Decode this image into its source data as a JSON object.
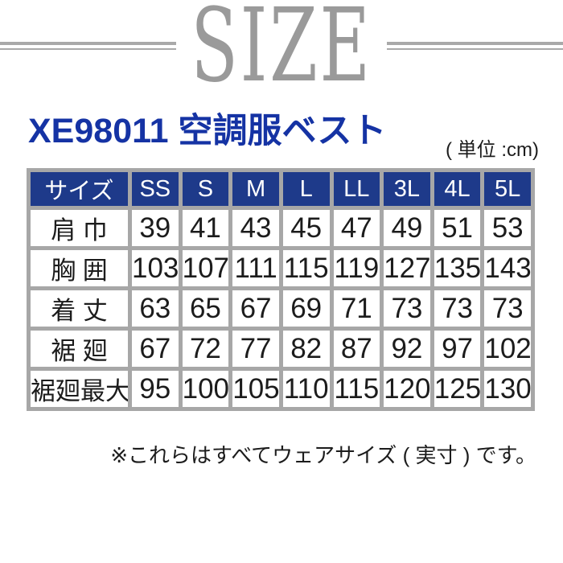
{
  "page": {
    "size_heading": "SIZE",
    "product_title": "XE98011 空調服ベスト",
    "unit_label": "( 単位 :cm)",
    "footnote": "※これらはすべてウェアサイズ ( 実寸 ) です。"
  },
  "colors": {
    "title_blue": "#1533a4",
    "header_blue": "#1e3a8a",
    "heading_gray": "#9a9a9a",
    "rule_gray": "#a9a9a9",
    "border_gray": "#a7a7a7"
  },
  "chart_data": {
    "type": "table",
    "title": "XE98011 空調服ベスト",
    "unit": "cm",
    "columns": [
      "サイズ",
      "SS",
      "S",
      "M",
      "L",
      "LL",
      "3L",
      "4L",
      "5L"
    ],
    "rows": [
      {
        "label": "肩 巾",
        "values": [
          39,
          41,
          43,
          45,
          47,
          49,
          51,
          53
        ]
      },
      {
        "label": "胸 囲",
        "values": [
          103,
          107,
          111,
          115,
          119,
          127,
          135,
          143
        ]
      },
      {
        "label": "着 丈",
        "values": [
          63,
          65,
          67,
          69,
          71,
          73,
          73,
          73
        ]
      },
      {
        "label": "裾 廻",
        "values": [
          67,
          72,
          77,
          82,
          87,
          92,
          97,
          102
        ]
      },
      {
        "label": "裾廻最大",
        "values": [
          95,
          100,
          105,
          110,
          115,
          120,
          125,
          130
        ]
      }
    ],
    "note": "※これらはすべてウェアサイズ ( 実寸 ) です。"
  }
}
